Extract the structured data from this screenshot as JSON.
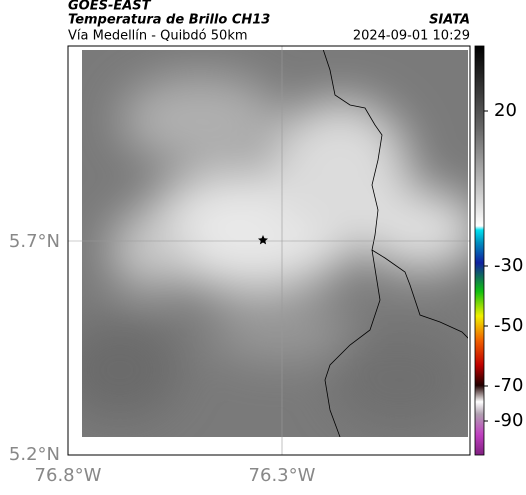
{
  "header": {
    "title": "GOES-EAST",
    "subtitle": "Temperatura de Brillo CH13",
    "route": "Vía Medellín - Quibdó 50km",
    "source": "SIATA",
    "timestamp": "2024-09-01 10:29"
  },
  "map": {
    "lat_labels": [
      "5.7°N",
      "5.2°N"
    ],
    "lon_labels": [
      "76.8°W",
      "76.3°W"
    ]
  },
  "colorbar": {
    "ticks": [
      20,
      -30,
      -50,
      -70,
      -90
    ]
  }
}
